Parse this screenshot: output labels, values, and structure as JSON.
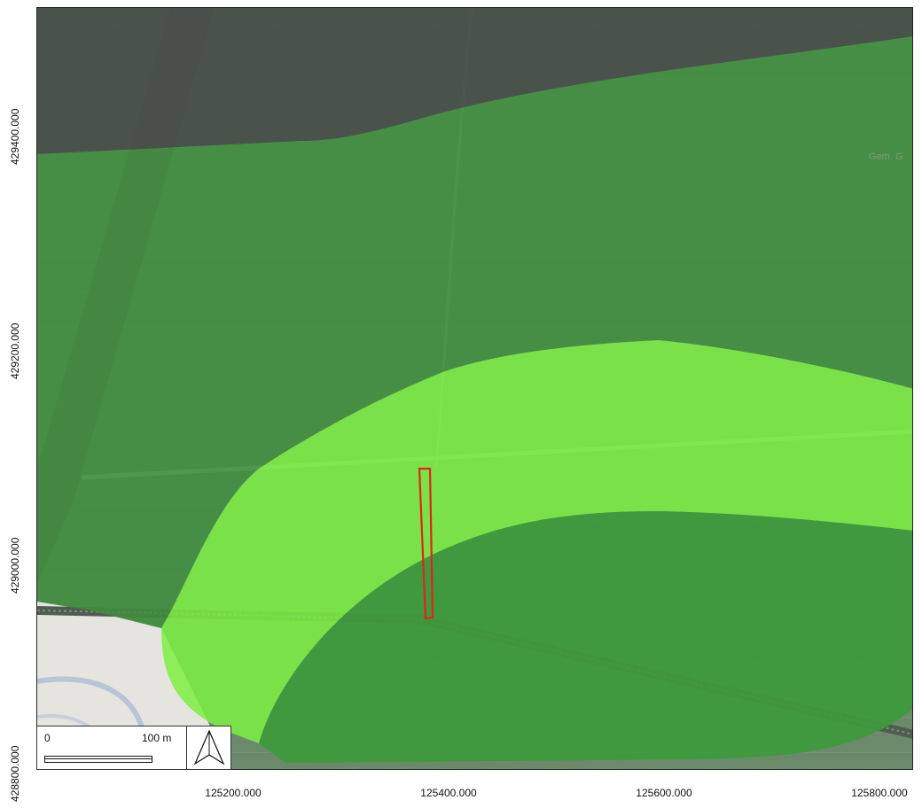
{
  "map": {
    "colors": {
      "base": "#6f8f70",
      "dark_zone": "#4f5850",
      "mid_zone": "#3f9a3f",
      "bright_zone": "#7ef04a",
      "lower_zone": "#3e9a3c",
      "parcel_outline": "#e1251b",
      "rail": "#5a6a5a",
      "road": "#8fae8c",
      "urban": "#e8e6e2"
    },
    "place_label": "Gem. G",
    "parcel": {
      "name": "selected-parcel",
      "outline": "red"
    }
  },
  "axes": {
    "y_ticks": [
      "429400.000",
      "429200.000",
      "429000.000",
      "428800.000"
    ],
    "x_ticks": [
      "125200.000",
      "125400.000",
      "125600.000",
      "125800.000"
    ]
  },
  "scalebar": {
    "zero_label": "0",
    "end_label": "100 m"
  },
  "north_arrow": {
    "icon": "north-arrow-icon"
  }
}
